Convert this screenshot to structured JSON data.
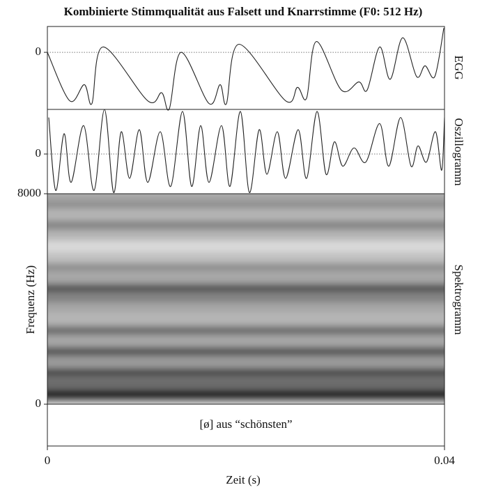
{
  "title": "Kombinierte Stimmqualität aus Falsett und Knarrstimme (F0: 512 Hz)",
  "chart_data": [
    {
      "type": "line",
      "label": "EGG",
      "color": "#222222",
      "ylim": [
        -1.06,
        0.48
      ],
      "yticks": [
        0
      ],
      "x": [
        0,
        0.00225,
        0.00372,
        0.00449,
        0.00561,
        0.01011,
        0.01151,
        0.01228,
        0.01347,
        0.01628,
        0.0174,
        0.01804,
        0.0193,
        0.024,
        0.02519,
        0.02611,
        0.02709,
        0.02961,
        0.03137,
        0.03221,
        0.03347,
        0.03453,
        0.03579,
        0.03719,
        0.03804,
        0.03902,
        0.03993
      ],
      "values": [
        0,
        -0.9,
        -0.6,
        -0.95,
        0.1,
        -0.9,
        -0.75,
        -1.05,
        0,
        -0.95,
        -0.6,
        -0.95,
        0.15,
        -0.9,
        -0.65,
        -0.85,
        0.2,
        -0.7,
        -0.55,
        -0.7,
        0.1,
        -0.5,
        0.27,
        -0.45,
        -0.25,
        -0.45,
        0.45
      ]
    },
    {
      "type": "line",
      "label": "Oszillogramm",
      "color": "#222222",
      "ylim": [
        -0.98,
        1.1
      ],
      "yticks": [
        0
      ],
      "x": [
        0.00014,
        0.00084,
        0.00168,
        0.00239,
        0.00365,
        0.0047,
        0.00575,
        0.00667,
        0.00744,
        0.00828,
        0.00926,
        0.01011,
        0.01137,
        0.01242,
        0.01361,
        0.01453,
        0.01544,
        0.01628,
        0.01754,
        0.01839,
        0.01944,
        0.02035,
        0.02133,
        0.02211,
        0.02316,
        0.024,
        0.02526,
        0.02611,
        0.02716,
        0.02807,
        0.02891,
        0.02975,
        0.03088,
        0.03207,
        0.03347,
        0.03439,
        0.03558,
        0.03663,
        0.03733,
        0.03818,
        0.03909,
        0.03972,
        0.04
      ],
      "values": [
        0.9,
        -0.9,
        0.5,
        -0.7,
        0.7,
        -0.9,
        1.1,
        -0.95,
        0.55,
        -0.6,
        0.6,
        -0.7,
        0.55,
        -0.8,
        1.05,
        -0.8,
        0.7,
        -0.7,
        0.7,
        -0.8,
        1.05,
        -0.95,
        0.6,
        -0.5,
        0.55,
        -0.6,
        0.6,
        -0.6,
        1.05,
        -0.5,
        0.3,
        -0.3,
        0.15,
        -0.2,
        0.75,
        -0.3,
        0.9,
        -0.3,
        0.2,
        -0.2,
        0.55,
        -0.4,
        0.9
      ]
    },
    {
      "type": "spectrogram",
      "label": "Spektrogramm",
      "y_label": "Frequenz (Hz)",
      "ylim": [
        0,
        8000
      ],
      "yticks": [
        0,
        8000
      ],
      "xlim": [
        0,
        0.04
      ],
      "xticks": [
        0,
        0.04
      ],
      "x_label": "Zeit (s)",
      "annotation": "[ø] aus “schönsten”",
      "frequencies": [
        200,
        400,
        800,
        1200,
        1600,
        2000,
        2400,
        2800,
        3200,
        3600,
        4000,
        4400,
        4800,
        5200,
        5600,
        6000,
        6400,
        6800,
        7200,
        7600,
        8000
      ],
      "values": [
        0.5,
        1.0,
        0.6,
        0.75,
        0.4,
        0.7,
        0.35,
        0.6,
        0.3,
        0.35,
        0.5,
        0.7,
        0.35,
        0.45,
        0.25,
        0.15,
        0.3,
        0.5,
        0.3,
        0.45,
        0.35
      ]
    }
  ]
}
